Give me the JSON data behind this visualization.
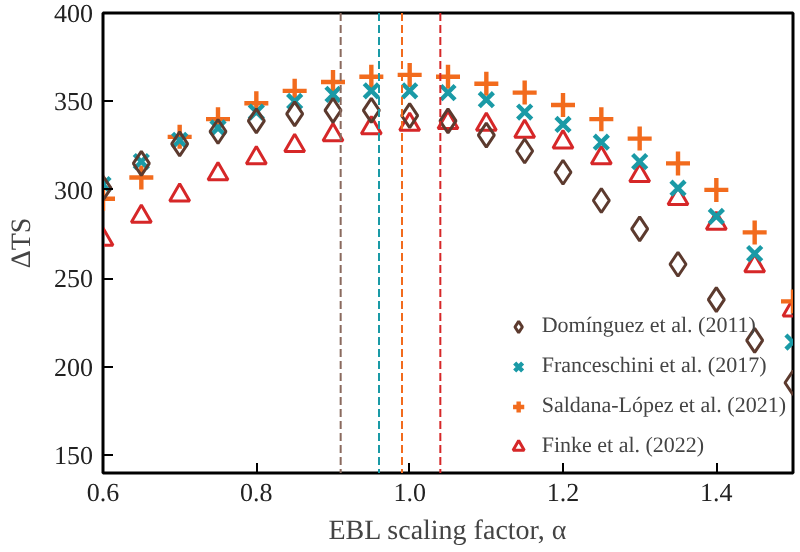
{
  "chart_data": {
    "type": "scatter",
    "xlabel": "EBL scaling factor, α",
    "ylabel": "ΔTS",
    "x": [
      0.6,
      0.65,
      0.7,
      0.75,
      0.8,
      0.85,
      0.9,
      0.95,
      1.0,
      1.05,
      1.1,
      1.15,
      1.2,
      1.25,
      1.3,
      1.35,
      1.4,
      1.45,
      1.5
    ],
    "series": [
      {
        "name": "Domínguez et al. (2011)",
        "color": "#5c3a2e",
        "marker": "diamond",
        "values": [
          301,
          315,
          326,
          333,
          339,
          343,
          345,
          345,
          342,
          339,
          331,
          322,
          310,
          294,
          278,
          258,
          238,
          215,
          191
        ]
      },
      {
        "name": "Franceschini et al. (2017)",
        "color": "#1a9aa6",
        "marker": "x",
        "values": [
          303,
          316,
          328,
          335,
          344,
          350,
          354,
          356,
          356,
          355,
          351,
          344,
          337,
          327,
          316,
          301,
          285,
          264,
          214
        ]
      },
      {
        "name": "Saldana-López et al. (2021)",
        "color": "#f26b1d",
        "marker": "cross",
        "values": [
          295,
          307,
          330,
          340,
          349,
          356,
          361,
          364,
          365,
          364,
          360,
          355,
          348,
          340,
          329,
          315,
          300,
          276,
          237
        ]
      },
      {
        "name": "Finke et al. (2022)",
        "color": "#d62728",
        "marker": "triangle",
        "values": [
          272,
          285,
          297,
          309,
          318,
          325,
          331,
          335,
          337,
          338,
          337,
          333,
          327,
          318,
          308,
          295,
          281,
          257,
          232
        ]
      }
    ],
    "xlim": [
      0.6,
      1.5
    ],
    "ylim": [
      140,
      400
    ],
    "xticks": [
      {
        "value": 0.6,
        "label": "0.6"
      },
      {
        "value": 0.8,
        "label": "0.8"
      },
      {
        "value": 1.0,
        "label": "1.0"
      },
      {
        "value": 1.2,
        "label": "1.2"
      },
      {
        "value": 1.4,
        "label": "1.4"
      }
    ],
    "yticks": [
      150,
      200,
      250,
      300,
      350,
      400
    ],
    "ref_lines": [
      {
        "axis": "x",
        "value": 0.91,
        "color": "#8a6a5e",
        "line_style": "dashed"
      },
      {
        "axis": "x",
        "value": 0.96,
        "color": "#1a9aa6",
        "line_style": "dashed"
      },
      {
        "axis": "x",
        "value": 0.99,
        "color": "#f26b1d",
        "line_style": "dashed"
      },
      {
        "axis": "x",
        "value": 1.04,
        "color": "#d62728",
        "line_style": "dashed"
      }
    ],
    "grid": false,
    "legend": "bottom right"
  }
}
